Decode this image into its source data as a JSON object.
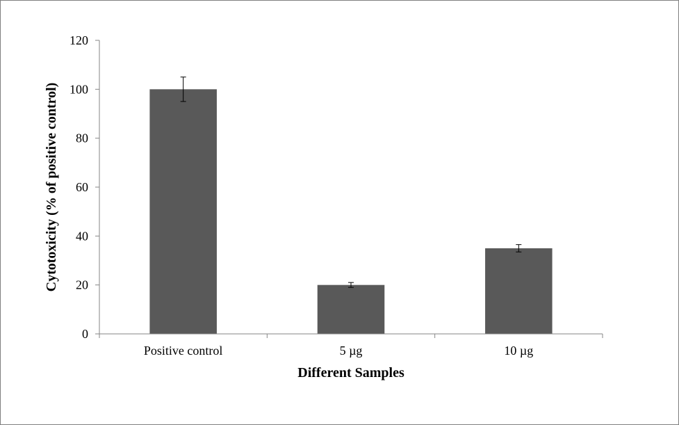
{
  "chart_data": {
    "type": "bar",
    "title": "",
    "xlabel": "Different Samples",
    "ylabel": "Cytotoxicity  (% of positive control)",
    "categories": [
      "Positive control",
      "5 µg",
      "10 µg"
    ],
    "series": [
      {
        "values": [
          100,
          20,
          35
        ],
        "errors": [
          5,
          1,
          1.5
        ],
        "color": "#595959"
      }
    ],
    "ylim": [
      0,
      120
    ],
    "yticks": [
      0,
      20,
      40,
      60,
      80,
      100,
      120
    ],
    "ytick_labels": [
      "0",
      "20",
      "40",
      "60",
      "80",
      "100",
      "120"
    ],
    "grid": false,
    "legend": "none"
  }
}
